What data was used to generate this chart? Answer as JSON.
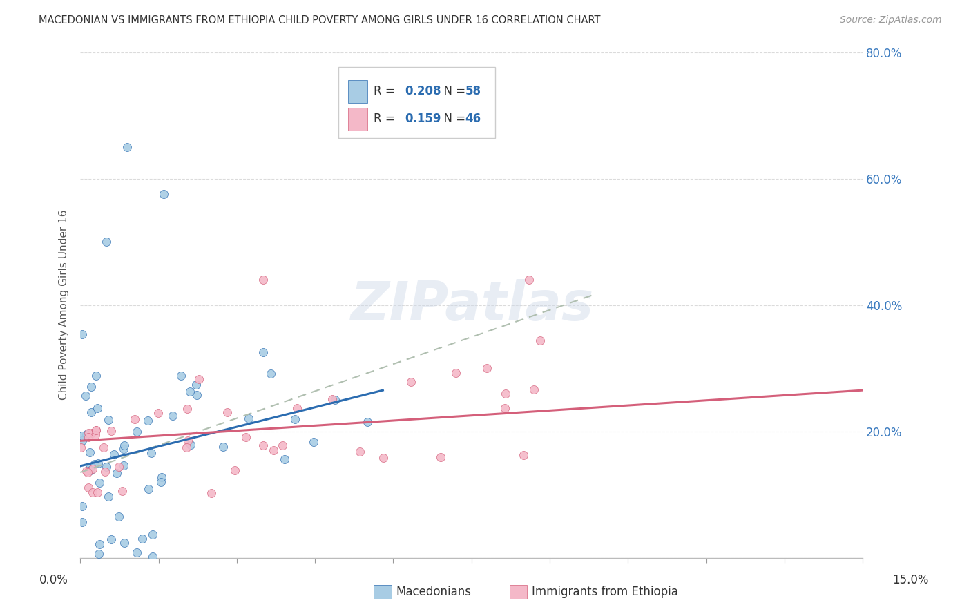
{
  "title": "MACEDONIAN VS IMMIGRANTS FROM ETHIOPIA CHILD POVERTY AMONG GIRLS UNDER 16 CORRELATION CHART",
  "source": "Source: ZipAtlas.com",
  "ylabel": "Child Poverty Among Girls Under 16",
  "xlim": [
    0.0,
    15.0
  ],
  "ylim": [
    0.0,
    80.0
  ],
  "legend_r1": "0.208",
  "legend_n1": "58",
  "legend_r2": "0.159",
  "legend_n2": "46",
  "color_blue": "#a8cce4",
  "color_pink": "#f4b8c8",
  "color_blue_line": "#2b6cb0",
  "color_pink_line": "#d45f7a",
  "color_blue_text": "#2b6cb0",
  "watermark": "ZIPatlas",
  "background_color": "#ffffff",
  "grid_color": "#cccccc",
  "title_color": "#333333",
  "source_color": "#999999",
  "axis_label_color": "#555555",
  "right_tick_color": "#3a7abf"
}
